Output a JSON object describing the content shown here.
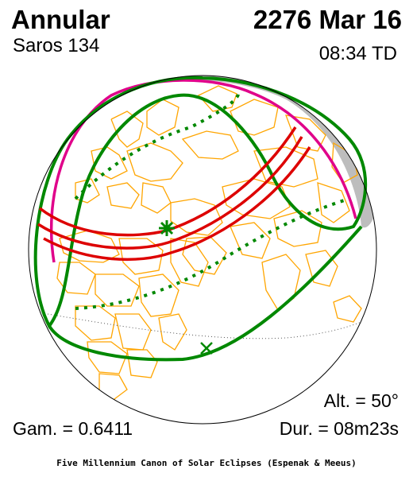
{
  "header": {
    "eclipse_type": "Annular",
    "saros": "Saros 134",
    "date": "2276 Mar 16",
    "time": "08:34 TD"
  },
  "stats": {
    "altitude": "Alt. = 50°",
    "gamma": "Gam. = 0.6411",
    "duration": "Dur. = 08m23s"
  },
  "footer": "Five Millennium Canon of Solar Eclipses (Espenak & Meeus)",
  "colors": {
    "night_shade": "#bdbdbd",
    "borders": "#ffa500",
    "central_path": "#dd0000",
    "penumbra_limits": "#008800",
    "rise_set_curve": "#e0008a",
    "globe_outline": "#000000"
  },
  "markers": {
    "greatest_eclipse": "green asterisk",
    "sub_solar_point": "green x"
  }
}
